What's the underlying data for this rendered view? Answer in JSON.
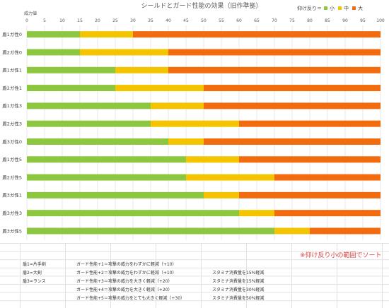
{
  "chart_data": {
    "type": "bar",
    "stacked": true,
    "orientation": "horizontal",
    "title": "シールドとガード性能の効果（旧作準拠）",
    "xlabel": "威力値",
    "xlim": [
      0,
      100
    ],
    "xticks": [
      0,
      5,
      10,
      15,
      20,
      25,
      30,
      35,
      40,
      45,
      50,
      55,
      60,
      65,
      70,
      75,
      80,
      85,
      90,
      95,
      100
    ],
    "grid": true,
    "legend": {
      "title": "仰け反り＝",
      "position": "top-right"
    },
    "categories": [
      "盾1ガ性0",
      "盾2ガ性0",
      "盾1ガ性1",
      "盾2ガ性1",
      "盾1ガ性3",
      "盾2ガ性3",
      "盾3ガ性0",
      "盾1ガ性5",
      "盾2ガ性5",
      "盾3ガ性1",
      "盾3ガ性3",
      "盾3ガ性5"
    ],
    "series": [
      {
        "name": "小",
        "color": "#8dc63f",
        "values": [
          15,
          15,
          25,
          25,
          35,
          35,
          40,
          45,
          45,
          50,
          60,
          70
        ]
      },
      {
        "name": "中",
        "color": "#f5c400",
        "values": [
          15,
          25,
          15,
          25,
          15,
          25,
          10,
          15,
          25,
          10,
          10,
          10
        ]
      },
      {
        "name": "大",
        "color": "#f26b0f",
        "values": [
          70,
          60,
          60,
          50,
          50,
          40,
          50,
          40,
          30,
          40,
          30,
          20
        ]
      }
    ]
  },
  "sheet": {
    "sort_note": "※仰け反り小の範囲でソート",
    "shield_notes": [
      "盾1=片手剣",
      "盾2=大剣",
      "盾3=ランス"
    ],
    "guard_notes": [
      "ガード性能+1＝攻撃の威力をわずかに軽減（+10）",
      "ガード性能+2＝攻撃の威力をわずかに軽減（+10）",
      "ガード性能+3＝攻撃の威力を大きく軽減（+20）",
      "ガード性能+4＝攻撃の威力を大きく軽減（+20）",
      "ガード性能+5＝攻撃の威力をとても大きく軽減（+30）"
    ],
    "stamina_notes": [
      "スタミナ消費量を15%軽減",
      "スタミナ消費量を15%軽減",
      "スタミナ消費量を30%軽減",
      "スタミナ消費量を50%軽減"
    ]
  }
}
